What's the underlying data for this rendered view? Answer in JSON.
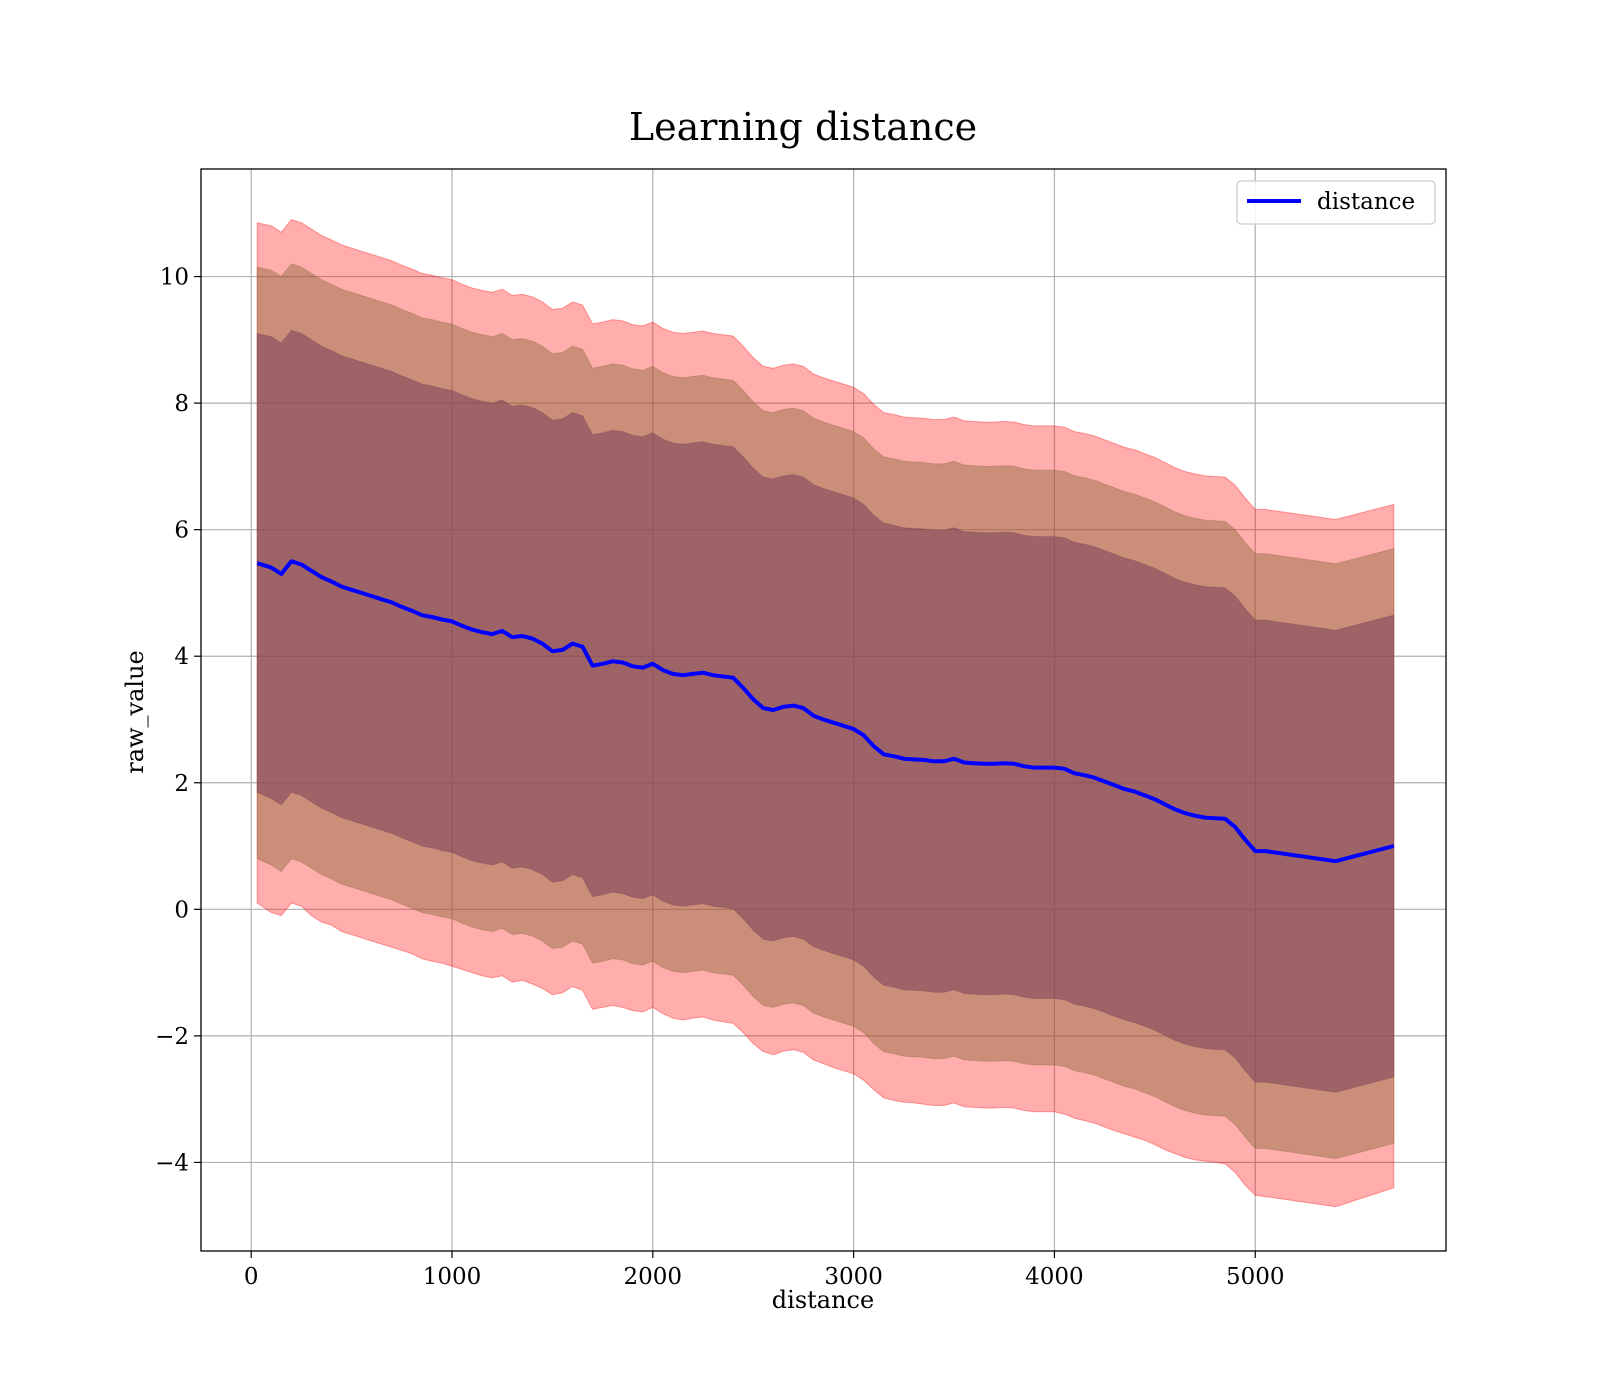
{
  "chart_data": {
    "type": "line",
    "title": "Learning distance",
    "xlabel": "distance",
    "ylabel": "raw_value",
    "xlim": [
      -250,
      5950
    ],
    "ylim": [
      -5.4,
      11.7
    ],
    "xticks": [
      0,
      1000,
      2000,
      3000,
      4000,
      5000
    ],
    "yticks": [
      -4,
      -2,
      0,
      2,
      4,
      6,
      8,
      10
    ],
    "grid": true,
    "legend": {
      "placement": "top-right",
      "entries": [
        "distance"
      ]
    },
    "colors": {
      "line": "#0000ff",
      "band_outer": "#ff0000",
      "band_middle": "#8b6a3a",
      "band_inner": "#7a3f5a"
    },
    "series": [
      {
        "name": "distance",
        "x": [
          30,
          100,
          150,
          200,
          250,
          300,
          350,
          400,
          450,
          500,
          550,
          600,
          650,
          700,
          750,
          800,
          850,
          900,
          950,
          1000,
          1050,
          1100,
          1150,
          1200,
          1250,
          1300,
          1350,
          1400,
          1450,
          1500,
          1550,
          1600,
          1650,
          1700,
          1750,
          1800,
          1850,
          1900,
          1950,
          2000,
          2050,
          2100,
          2150,
          2200,
          2250,
          2300,
          2350,
          2400,
          2450,
          2500,
          2550,
          2600,
          2650,
          2700,
          2750,
          2800,
          2850,
          2900,
          2950,
          3000,
          3050,
          3100,
          3150,
          3200,
          3250,
          3300,
          3350,
          3400,
          3450,
          3500,
          3550,
          3600,
          3650,
          3700,
          3750,
          3800,
          3850,
          3900,
          3950,
          4000,
          4050,
          4100,
          4150,
          4200,
          4250,
          4300,
          4350,
          4400,
          4450,
          4500,
          4550,
          4600,
          4650,
          4700,
          4750,
          4800,
          4850,
          4900,
          4950,
          5000,
          5050,
          5400,
          5690
        ],
        "values": [
          5.47,
          5.4,
          5.3,
          5.5,
          5.45,
          5.35,
          5.25,
          5.18,
          5.1,
          5.05,
          5.0,
          4.95,
          4.9,
          4.85,
          4.78,
          4.72,
          4.65,
          4.62,
          4.58,
          4.55,
          4.48,
          4.42,
          4.38,
          4.35,
          4.4,
          4.3,
          4.32,
          4.28,
          4.2,
          4.08,
          4.1,
          4.2,
          4.15,
          3.85,
          3.88,
          3.92,
          3.9,
          3.84,
          3.82,
          3.88,
          3.78,
          3.72,
          3.7,
          3.72,
          3.74,
          3.7,
          3.68,
          3.66,
          3.5,
          3.32,
          3.18,
          3.15,
          3.2,
          3.22,
          3.18,
          3.06,
          3.0,
          2.95,
          2.9,
          2.85,
          2.75,
          2.58,
          2.45,
          2.42,
          2.38,
          2.37,
          2.36,
          2.34,
          2.34,
          2.38,
          2.32,
          2.31,
          2.3,
          2.3,
          2.31,
          2.3,
          2.26,
          2.24,
          2.24,
          2.24,
          2.22,
          2.15,
          2.12,
          2.08,
          2.02,
          1.96,
          1.9,
          1.86,
          1.8,
          1.74,
          1.66,
          1.58,
          1.52,
          1.48,
          1.45,
          1.44,
          1.43,
          1.3,
          1.1,
          0.92,
          0.92,
          0.76,
          1.0
        ]
      }
    ],
    "bands": [
      {
        "lower": [
          0.1,
          -0.05,
          -0.1,
          0.1,
          0.05,
          -0.1,
          -0.2,
          -0.25,
          -0.35,
          -0.4,
          -0.45,
          -0.5,
          -0.55,
          -0.6,
          -0.65,
          -0.7,
          -0.78,
          -0.82,
          -0.85,
          -0.9,
          -0.95,
          -1.0,
          -1.05,
          -1.08,
          -1.05,
          -1.15,
          -1.12,
          -1.18,
          -1.25,
          -1.35,
          -1.32,
          -1.22,
          -1.28,
          -1.58,
          -1.55,
          -1.52,
          -1.55,
          -1.6,
          -1.62,
          -1.55,
          -1.65,
          -1.72,
          -1.75,
          -1.72,
          -1.7,
          -1.75,
          -1.78,
          -1.8,
          -1.95,
          -2.12,
          -2.25,
          -2.3,
          -2.24,
          -2.22,
          -2.26,
          -2.38,
          -2.44,
          -2.5,
          -2.55,
          -2.6,
          -2.7,
          -2.85,
          -2.98,
          -3.02,
          -3.05,
          -3.06,
          -3.08,
          -3.1,
          -3.1,
          -3.06,
          -3.12,
          -3.13,
          -3.14,
          -3.14,
          -3.13,
          -3.14,
          -3.18,
          -3.2,
          -3.2,
          -3.2,
          -3.24,
          -3.3,
          -3.34,
          -3.38,
          -3.44,
          -3.5,
          -3.55,
          -3.6,
          -3.65,
          -3.72,
          -3.8,
          -3.86,
          -3.92,
          -3.96,
          -3.98,
          -4.0,
          -4.02,
          -4.16,
          -4.36,
          -4.52,
          -4.54,
          -4.7,
          -4.4
        ],
        "upper": [
          10.85,
          10.8,
          10.7,
          10.9,
          10.85,
          10.75,
          10.65,
          10.58,
          10.5,
          10.45,
          10.4,
          10.35,
          10.3,
          10.25,
          10.18,
          10.12,
          10.05,
          10.02,
          9.98,
          9.95,
          9.88,
          9.82,
          9.78,
          9.75,
          9.8,
          9.7,
          9.72,
          9.68,
          9.6,
          9.48,
          9.5,
          9.6,
          9.55,
          9.25,
          9.28,
          9.32,
          9.3,
          9.24,
          9.22,
          9.28,
          9.18,
          9.12,
          9.1,
          9.12,
          9.14,
          9.1,
          9.08,
          9.06,
          8.9,
          8.72,
          8.58,
          8.55,
          8.6,
          8.62,
          8.58,
          8.46,
          8.4,
          8.35,
          8.3,
          8.25,
          8.15,
          7.98,
          7.85,
          7.82,
          7.78,
          7.77,
          7.76,
          7.74,
          7.74,
          7.78,
          7.72,
          7.71,
          7.7,
          7.7,
          7.71,
          7.7,
          7.66,
          7.64,
          7.64,
          7.64,
          7.62,
          7.55,
          7.52,
          7.48,
          7.42,
          7.36,
          7.3,
          7.26,
          7.2,
          7.14,
          7.06,
          6.98,
          6.92,
          6.88,
          6.85,
          6.84,
          6.83,
          6.7,
          6.5,
          6.32,
          6.32,
          6.16,
          6.4
        ]
      },
      {
        "lower": [
          0.8,
          0.7,
          0.6,
          0.8,
          0.75,
          0.65,
          0.55,
          0.48,
          0.4,
          0.35,
          0.3,
          0.25,
          0.2,
          0.15,
          0.08,
          0.02,
          -0.05,
          -0.08,
          -0.12,
          -0.15,
          -0.22,
          -0.28,
          -0.32,
          -0.35,
          -0.3,
          -0.4,
          -0.38,
          -0.42,
          -0.5,
          -0.62,
          -0.6,
          -0.5,
          -0.55,
          -0.85,
          -0.82,
          -0.78,
          -0.8,
          -0.86,
          -0.88,
          -0.82,
          -0.92,
          -0.98,
          -1.0,
          -0.98,
          -0.96,
          -1.0,
          -1.02,
          -1.04,
          -1.2,
          -1.38,
          -1.52,
          -1.55,
          -1.5,
          -1.48,
          -1.52,
          -1.64,
          -1.7,
          -1.75,
          -1.8,
          -1.85,
          -1.95,
          -2.12,
          -2.25,
          -2.28,
          -2.32,
          -2.33,
          -2.34,
          -2.36,
          -2.36,
          -2.32,
          -2.38,
          -2.39,
          -2.4,
          -2.4,
          -2.39,
          -2.4,
          -2.44,
          -2.46,
          -2.46,
          -2.46,
          -2.48,
          -2.55,
          -2.58,
          -2.62,
          -2.68,
          -2.74,
          -2.8,
          -2.84,
          -2.9,
          -2.96,
          -3.04,
          -3.12,
          -3.18,
          -3.22,
          -3.25,
          -3.26,
          -3.27,
          -3.4,
          -3.6,
          -3.78,
          -3.78,
          -3.94,
          -3.7
        ],
        "upper": [
          10.15,
          10.1,
          10.0,
          10.2,
          10.15,
          10.05,
          9.95,
          9.88,
          9.8,
          9.75,
          9.7,
          9.65,
          9.6,
          9.55,
          9.48,
          9.42,
          9.35,
          9.32,
          9.28,
          9.25,
          9.18,
          9.12,
          9.08,
          9.05,
          9.1,
          9.0,
          9.02,
          8.98,
          8.9,
          8.78,
          8.8,
          8.9,
          8.85,
          8.55,
          8.58,
          8.62,
          8.6,
          8.54,
          8.52,
          8.58,
          8.48,
          8.42,
          8.4,
          8.42,
          8.44,
          8.4,
          8.38,
          8.36,
          8.2,
          8.02,
          7.88,
          7.85,
          7.9,
          7.92,
          7.88,
          7.76,
          7.7,
          7.65,
          7.6,
          7.55,
          7.45,
          7.28,
          7.15,
          7.12,
          7.08,
          7.07,
          7.06,
          7.04,
          7.04,
          7.08,
          7.02,
          7.01,
          7.0,
          7.0,
          7.01,
          7.0,
          6.96,
          6.94,
          6.94,
          6.94,
          6.92,
          6.85,
          6.82,
          6.78,
          6.72,
          6.66,
          6.6,
          6.56,
          6.5,
          6.44,
          6.36,
          6.28,
          6.22,
          6.18,
          6.15,
          6.14,
          6.13,
          6.0,
          5.8,
          5.62,
          5.62,
          5.46,
          5.7
        ]
      },
      {
        "lower": [
          1.85,
          1.75,
          1.65,
          1.85,
          1.8,
          1.7,
          1.6,
          1.53,
          1.45,
          1.4,
          1.35,
          1.3,
          1.25,
          1.2,
          1.13,
          1.07,
          1.0,
          0.97,
          0.93,
          0.9,
          0.83,
          0.77,
          0.73,
          0.7,
          0.75,
          0.65,
          0.67,
          0.63,
          0.55,
          0.43,
          0.45,
          0.55,
          0.5,
          0.2,
          0.23,
          0.27,
          0.25,
          0.19,
          0.17,
          0.23,
          0.13,
          0.07,
          0.05,
          0.07,
          0.09,
          0.05,
          0.03,
          0.01,
          -0.15,
          -0.33,
          -0.47,
          -0.5,
          -0.45,
          -0.43,
          -0.47,
          -0.59,
          -0.65,
          -0.7,
          -0.75,
          -0.8,
          -0.9,
          -1.07,
          -1.2,
          -1.23,
          -1.27,
          -1.28,
          -1.29,
          -1.31,
          -1.31,
          -1.27,
          -1.33,
          -1.34,
          -1.35,
          -1.35,
          -1.34,
          -1.35,
          -1.39,
          -1.41,
          -1.41,
          -1.41,
          -1.43,
          -1.5,
          -1.53,
          -1.57,
          -1.63,
          -1.69,
          -1.75,
          -1.79,
          -1.85,
          -1.91,
          -1.99,
          -2.07,
          -2.13,
          -2.17,
          -2.2,
          -2.21,
          -2.22,
          -2.35,
          -2.55,
          -2.73,
          -2.73,
          -2.89,
          -2.65
        ],
        "upper": [
          9.1,
          9.05,
          8.95,
          9.15,
          9.1,
          9.0,
          8.9,
          8.83,
          8.75,
          8.7,
          8.65,
          8.6,
          8.55,
          8.5,
          8.43,
          8.37,
          8.3,
          8.27,
          8.23,
          8.2,
          8.13,
          8.07,
          8.03,
          8.0,
          8.05,
          7.95,
          7.97,
          7.93,
          7.85,
          7.73,
          7.75,
          7.85,
          7.8,
          7.5,
          7.53,
          7.57,
          7.55,
          7.49,
          7.47,
          7.53,
          7.43,
          7.37,
          7.35,
          7.37,
          7.39,
          7.35,
          7.33,
          7.31,
          7.15,
          6.97,
          6.83,
          6.8,
          6.85,
          6.87,
          6.83,
          6.71,
          6.65,
          6.6,
          6.55,
          6.5,
          6.4,
          6.23,
          6.1,
          6.07,
          6.03,
          6.02,
          6.01,
          5.99,
          5.99,
          6.03,
          5.97,
          5.96,
          5.95,
          5.95,
          5.96,
          5.95,
          5.91,
          5.89,
          5.89,
          5.89,
          5.87,
          5.8,
          5.77,
          5.73,
          5.67,
          5.61,
          5.55,
          5.51,
          5.45,
          5.39,
          5.31,
          5.23,
          5.17,
          5.13,
          5.1,
          5.09,
          5.08,
          4.95,
          4.75,
          4.57,
          4.57,
          4.41,
          4.65
        ]
      }
    ]
  }
}
